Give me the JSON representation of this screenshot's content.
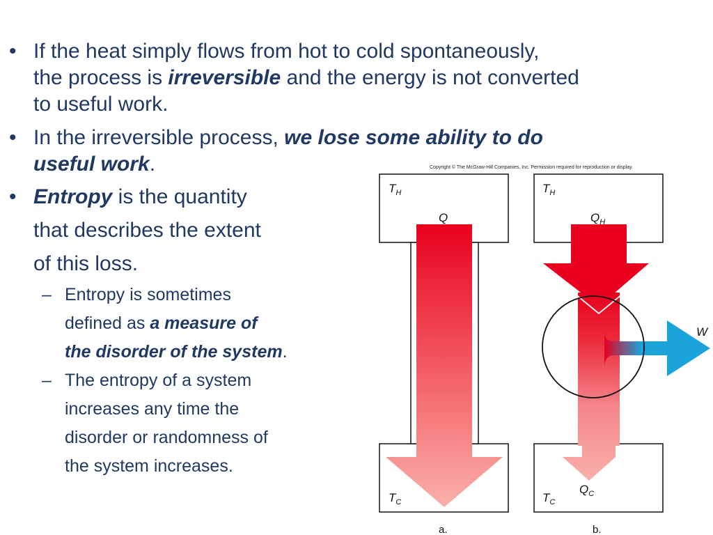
{
  "bullets": {
    "b1": {
      "marker": "•",
      "lines": [
        "If the heat simply flows from hot to cold spontaneously,",
        "the process is ",
        "irreversible",
        " and the energy is not converted",
        "to useful work."
      ]
    },
    "b2": {
      "marker": "•",
      "pre": "In the irreversible process, ",
      "em1": "we lose some ability to do",
      "em2": "useful work",
      "post": "."
    },
    "b3": {
      "marker": "•",
      "em": "Entropy",
      "line1_rest": " is the quantity",
      "line2": "that describes the extent",
      "line3": "of this loss."
    },
    "sub1": {
      "marker": "–",
      "line1": "Entropy is sometimes",
      "line2_pre": "defined as ",
      "line2_em": "a measure of",
      "line3_em": "the disorder of the system",
      "line3_post": "."
    },
    "sub2": {
      "marker": "–",
      "line1": "The entropy of a system",
      "line2": "increases any time the",
      "line3": "disorder or randomness of",
      "line4": "the system increases."
    }
  },
  "figure": {
    "copyright": "Copyright © The McGraw-Hill Companies, Inc. Permission required for reproduction or display.",
    "panel_a": {
      "hot_T": "T",
      "hot_sub": "H",
      "cold_T": "T",
      "cold_sub": "C",
      "heat": "Q",
      "caption": "a."
    },
    "panel_b": {
      "hot_T": "T",
      "hot_sub": "H",
      "cold_T": "T",
      "cold_sub": "C",
      "heat_in": "Q",
      "heat_in_sub": "H",
      "heat_out": "Q",
      "heat_out_sub": "C",
      "work": "W",
      "caption": "b."
    },
    "colors": {
      "hot_arrow": "#e8001e",
      "cold_arrow": "#f9a8a4",
      "work_arrow": "#1ba3dc",
      "text": "#1f3864"
    }
  }
}
